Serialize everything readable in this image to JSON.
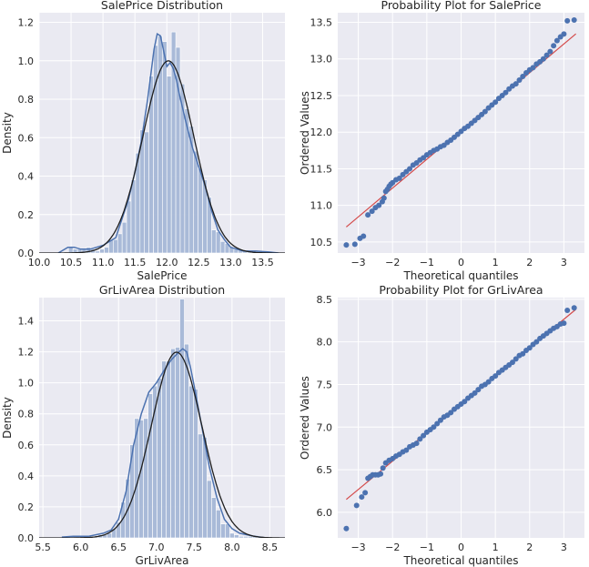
{
  "colors": {
    "bg": "#ffffff",
    "plot_bg": "#eaeaf2",
    "grid": "#ffffff",
    "bar": "#a5b7d6",
    "kde": "#4c72b0",
    "norm": "#1f1f1f",
    "point": "#4c72b0",
    "fit": "#d44a4a"
  },
  "chart_data": [
    {
      "type": "bar",
      "kind": "histogram",
      "title": "SalePrice Distribution",
      "xlabel": "SalePrice",
      "ylabel": "Density",
      "xlim": [
        10.0,
        13.85
      ],
      "ylim": [
        0,
        1.25
      ],
      "xticks": [
        10.0,
        10.5,
        11.0,
        11.5,
        12.0,
        12.5,
        13.0,
        13.5
      ],
      "xtick_labels": [
        "10.0",
        "10.5",
        "11.0",
        "11.5",
        "12.0",
        "12.5",
        "13.0",
        "13.5"
      ],
      "yticks": [
        0.0,
        0.2,
        0.4,
        0.6,
        0.8,
        1.0,
        1.2
      ],
      "ytick_labels": [
        "0.0",
        "0.2",
        "0.4",
        "0.6",
        "0.8",
        "1.0",
        "1.2"
      ],
      "bin_edges": [
        10.46,
        10.53,
        10.6,
        10.67,
        10.74,
        10.81,
        10.88,
        10.95,
        11.02,
        11.09,
        11.16,
        11.23,
        11.3,
        11.37,
        11.44,
        11.51,
        11.58,
        11.65,
        11.72,
        11.79,
        11.86,
        11.93,
        12.0,
        12.07,
        12.14,
        12.21,
        12.28,
        12.35,
        12.42,
        12.49,
        12.56,
        12.63,
        12.7,
        12.77,
        12.84,
        12.91,
        12.98,
        13.05,
        13.12,
        13.19,
        13.26,
        13.33,
        13.4,
        13.47,
        13.54
      ],
      "values": [
        0.03,
        0.02,
        0.02,
        0.02,
        0.03,
        0.02,
        0.01,
        0.02,
        0.03,
        0.07,
        0.07,
        0.1,
        0.16,
        0.27,
        0.38,
        0.52,
        0.64,
        0.63,
        0.92,
        1.08,
        1.13,
        1.1,
        0.92,
        1.15,
        1.07,
        0.88,
        0.75,
        0.66,
        0.53,
        0.44,
        0.38,
        0.29,
        0.12,
        0.11,
        0.06,
        0.05,
        0.03,
        0.02,
        0.02,
        0.01,
        0.01,
        0.01,
        0.01,
        0.01
      ],
      "kde": {
        "x": [
          10.3,
          10.45,
          10.55,
          10.65,
          10.8,
          11.0,
          11.2,
          11.4,
          11.5,
          11.6,
          11.7,
          11.8,
          11.85,
          11.9,
          11.95,
          12.0,
          12.05,
          12.1,
          12.15,
          12.2,
          12.3,
          12.4,
          12.5,
          12.6,
          12.7,
          12.8,
          12.9,
          13.0,
          13.2,
          13.4,
          13.6,
          13.75
        ],
        "y": [
          0.0,
          0.03,
          0.03,
          0.02,
          0.02,
          0.04,
          0.08,
          0.28,
          0.42,
          0.58,
          0.8,
          1.06,
          1.14,
          1.13,
          1.05,
          0.97,
          0.99,
          0.96,
          0.9,
          0.82,
          0.68,
          0.55,
          0.45,
          0.35,
          0.22,
          0.12,
          0.07,
          0.03,
          0.01,
          0.01,
          0.005,
          0.0
        ]
      },
      "normal_fit": {
        "mean": 12.024,
        "std": 0.399
      }
    },
    {
      "type": "scatter",
      "kind": "probability-plot",
      "title": "Probability Plot for SalePrice",
      "xlabel": "Theoretical quantiles",
      "ylabel": "Ordered Values",
      "xlim": [
        -3.6,
        3.6
      ],
      "ylim": [
        10.35,
        13.63
      ],
      "xticks": [
        -3,
        -2,
        -1,
        0,
        1,
        2,
        3
      ],
      "xtick_labels": [
        "−3",
        "−2",
        "−1",
        "0",
        "1",
        "2",
        "3"
      ],
      "yticks": [
        10.5,
        11.0,
        11.5,
        12.0,
        12.5,
        13.0,
        13.5
      ],
      "ytick_labels": [
        "10.5",
        "11.0",
        "11.5",
        "12.0",
        "12.5",
        "13.0",
        "13.5"
      ],
      "fit_line": {
        "slope": 0.3935,
        "intercept": 12.024,
        "x_range": [
          -3.35,
          3.35
        ]
      },
      "points": {
        "x": [
          -3.35,
          -3.1,
          -2.95,
          -2.85,
          -2.72,
          -2.6,
          -2.5,
          -2.4,
          -2.3,
          -2.25,
          -2.2,
          -2.15,
          -2.1,
          -2.05,
          -2.0,
          -1.9,
          -1.8,
          -1.7,
          -1.6,
          -1.5,
          -1.4,
          -1.3,
          -1.2,
          -1.1,
          -1.0,
          -0.9,
          -0.8,
          -0.7,
          -0.6,
          -0.5,
          -0.4,
          -0.3,
          -0.2,
          -0.1,
          0.0,
          0.1,
          0.2,
          0.3,
          0.4,
          0.5,
          0.6,
          0.7,
          0.8,
          0.9,
          1.0,
          1.1,
          1.2,
          1.3,
          1.4,
          1.5,
          1.6,
          1.7,
          1.8,
          1.9,
          2.0,
          2.1,
          2.2,
          2.3,
          2.4,
          2.5,
          2.6,
          2.7,
          2.8,
          2.9,
          3.0,
          3.1,
          3.3
        ],
        "y": [
          10.46,
          10.47,
          10.55,
          10.58,
          10.87,
          10.92,
          10.97,
          11.0,
          11.05,
          11.1,
          11.19,
          11.22,
          11.26,
          11.29,
          11.31,
          11.35,
          11.37,
          11.42,
          11.46,
          11.5,
          11.55,
          11.58,
          11.62,
          11.65,
          11.69,
          11.72,
          11.75,
          11.77,
          11.8,
          11.82,
          11.86,
          11.89,
          11.93,
          11.97,
          12.01,
          12.05,
          12.08,
          12.12,
          12.16,
          12.2,
          12.24,
          12.28,
          12.33,
          12.37,
          12.41,
          12.46,
          12.5,
          12.54,
          12.59,
          12.63,
          12.66,
          12.71,
          12.76,
          12.81,
          12.85,
          12.88,
          12.93,
          12.96,
          13.0,
          13.05,
          13.1,
          13.18,
          13.25,
          13.3,
          13.34,
          13.52,
          13.53
        ]
      }
    },
    {
      "type": "bar",
      "kind": "histogram",
      "title": "GrLivArea Distribution",
      "xlabel": "GrLivArea",
      "ylabel": "Density",
      "xlim": [
        5.45,
        8.7
      ],
      "ylim": [
        0,
        1.55
      ],
      "xticks": [
        5.5,
        6.0,
        6.5,
        7.0,
        7.5,
        8.0,
        8.5
      ],
      "xtick_labels": [
        "5.5",
        "6.0",
        "6.5",
        "7.0",
        "7.5",
        "8.0",
        "8.5"
      ],
      "yticks": [
        0.0,
        0.2,
        0.4,
        0.6,
        0.8,
        1.0,
        1.2,
        1.4
      ],
      "ytick_labels": [
        "0.0",
        "0.2",
        "0.4",
        "0.6",
        "0.8",
        "1.0",
        "1.2",
        "1.4"
      ],
      "bin_edges": [
        5.81,
        5.87,
        5.93,
        5.99,
        6.05,
        6.11,
        6.17,
        6.23,
        6.29,
        6.35,
        6.41,
        6.47,
        6.53,
        6.59,
        6.65,
        6.71,
        6.77,
        6.83,
        6.89,
        6.95,
        7.01,
        7.07,
        7.13,
        7.19,
        7.25,
        7.31,
        7.37,
        7.43,
        7.49,
        7.55,
        7.61,
        7.67,
        7.73,
        7.79,
        7.85,
        7.91,
        7.97,
        8.03,
        8.09,
        8.15,
        8.21,
        8.27,
        8.33,
        8.39
      ],
      "values": [
        0.01,
        0.01,
        0.01,
        0.01,
        0.01,
        0.01,
        0.01,
        0.02,
        0.02,
        0.03,
        0.06,
        0.1,
        0.23,
        0.38,
        0.6,
        0.77,
        0.76,
        0.77,
        0.93,
        0.98,
        1.03,
        1.14,
        1.14,
        1.22,
        1.23,
        1.54,
        1.25,
        0.98,
        0.96,
        0.67,
        0.65,
        0.37,
        0.26,
        0.18,
        0.09,
        0.09,
        0.03,
        0.02,
        0.01,
        0.01,
        0.01,
        0.01,
        0.01
      ],
      "kde": {
        "x": [
          5.75,
          5.9,
          6.1,
          6.3,
          6.4,
          6.5,
          6.6,
          6.7,
          6.8,
          6.9,
          7.0,
          7.1,
          7.2,
          7.3,
          7.35,
          7.4,
          7.45,
          7.5,
          7.6,
          7.7,
          7.8,
          7.9,
          8.0,
          8.1,
          8.2,
          8.3,
          8.45
        ],
        "y": [
          0.005,
          0.01,
          0.01,
          0.03,
          0.05,
          0.12,
          0.3,
          0.6,
          0.8,
          0.94,
          1.0,
          1.08,
          1.15,
          1.2,
          1.22,
          1.2,
          1.1,
          0.98,
          0.72,
          0.46,
          0.26,
          0.12,
          0.06,
          0.03,
          0.02,
          0.01,
          0.0
        ]
      },
      "normal_fit": {
        "mean": 7.267,
        "std": 0.333
      }
    },
    {
      "type": "scatter",
      "kind": "probability-plot",
      "title": "Probability Plot for GrLivArea",
      "xlabel": "Theoretical quantiles",
      "ylabel": "Ordered Values",
      "xlim": [
        -3.6,
        3.6
      ],
      "ylim": [
        5.7,
        8.52
      ],
      "xticks": [
        -3,
        -2,
        -1,
        0,
        1,
        2,
        3
      ],
      "xtick_labels": [
        "−3",
        "−2",
        "−1",
        "0",
        "1",
        "2",
        "3"
      ],
      "yticks": [
        6.0,
        6.5,
        7.0,
        7.5,
        8.0,
        8.5
      ],
      "ytick_labels": [
        "6.0",
        "6.5",
        "7.0",
        "7.5",
        "8.0",
        "8.5"
      ],
      "fit_line": {
        "slope": 0.333,
        "intercept": 7.267,
        "x_range": [
          -3.35,
          3.35
        ]
      },
      "points": {
        "x": [
          -3.35,
          -3.05,
          -2.9,
          -2.8,
          -2.72,
          -2.65,
          -2.58,
          -2.5,
          -2.42,
          -2.35,
          -2.28,
          -2.2,
          -2.1,
          -2.0,
          -1.9,
          -1.8,
          -1.7,
          -1.6,
          -1.5,
          -1.4,
          -1.3,
          -1.2,
          -1.1,
          -1.0,
          -0.9,
          -0.8,
          -0.7,
          -0.6,
          -0.5,
          -0.4,
          -0.3,
          -0.2,
          -0.1,
          0.0,
          0.1,
          0.2,
          0.3,
          0.4,
          0.5,
          0.6,
          0.7,
          0.8,
          0.9,
          1.0,
          1.1,
          1.2,
          1.3,
          1.4,
          1.5,
          1.6,
          1.7,
          1.8,
          1.9,
          2.0,
          2.1,
          2.2,
          2.3,
          2.4,
          2.5,
          2.6,
          2.7,
          2.8,
          2.9,
          3.0,
          3.1,
          3.3
        ],
        "y": [
          5.81,
          6.08,
          6.18,
          6.23,
          6.4,
          6.42,
          6.44,
          6.44,
          6.44,
          6.45,
          6.52,
          6.58,
          6.61,
          6.63,
          6.66,
          6.68,
          6.71,
          6.73,
          6.77,
          6.79,
          6.81,
          6.86,
          6.9,
          6.94,
          6.97,
          7.0,
          7.04,
          7.08,
          7.12,
          7.14,
          7.17,
          7.21,
          7.24,
          7.27,
          7.3,
          7.34,
          7.37,
          7.4,
          7.44,
          7.48,
          7.5,
          7.53,
          7.57,
          7.6,
          7.64,
          7.67,
          7.7,
          7.73,
          7.76,
          7.8,
          7.84,
          7.86,
          7.9,
          7.93,
          7.97,
          8.0,
          8.04,
          8.07,
          8.1,
          8.13,
          8.16,
          8.18,
          8.21,
          8.22,
          8.37,
          8.4
        ]
      }
    }
  ]
}
